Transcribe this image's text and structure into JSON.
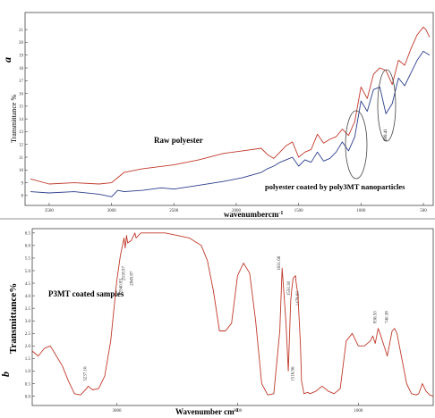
{
  "chart_data": [
    {
      "type": "line",
      "panel": "a",
      "panel_label": "a",
      "ylabel": "Transmittance %",
      "xlabel": "wavenumbercm",
      "xlabel_sup": "-1",
      "xlim": [
        3650,
        450
      ],
      "ylim": [
        7.5,
        21.5
      ],
      "x_ticks": [
        3500,
        3000,
        2500,
        2000,
        1500,
        1000,
        500
      ],
      "y_ticks": [
        8,
        9,
        10,
        11,
        12,
        13,
        14,
        15,
        16,
        17,
        18,
        19,
        20,
        21
      ],
      "annotations": {
        "raw": "Raw polyester",
        "coated": "polyester coated by poly3MT nanoparticles",
        "peak": "699.41"
      },
      "series": [
        {
          "key": "raw",
          "color": "#c0392b",
          "x": [
            3650,
            3500,
            3300,
            3100,
            3000,
            2900,
            2750,
            2500,
            2300,
            2100,
            1950,
            1800,
            1750,
            1700,
            1650,
            1600,
            1550,
            1500,
            1450,
            1400,
            1350,
            1300,
            1250,
            1200,
            1150,
            1100,
            1050,
            1000,
            950,
            900,
            850,
            800,
            750,
            700,
            650,
            600,
            550,
            500,
            480,
            450
          ],
          "y": [
            9.3,
            8.9,
            9.0,
            8.9,
            9.0,
            9.8,
            10.1,
            10.4,
            10.8,
            11.3,
            11.5,
            11.7,
            11.2,
            10.9,
            11.4,
            11.9,
            12.2,
            11.0,
            11.4,
            11.6,
            12.8,
            12.1,
            12.4,
            12.6,
            13.2,
            12.7,
            13.8,
            16.5,
            15.6,
            17.5,
            18.0,
            17.8,
            16.7,
            18.6,
            18.2,
            19.5,
            20.6,
            21.2,
            21.0,
            20.4
          ]
        },
        {
          "key": "coated",
          "color": "#2c3e8c",
          "x": [
            3650,
            3500,
            3300,
            3100,
            3000,
            2950,
            2900,
            2750,
            2600,
            2500,
            2300,
            2100,
            1950,
            1800,
            1750,
            1700,
            1650,
            1600,
            1550,
            1500,
            1450,
            1400,
            1350,
            1300,
            1250,
            1200,
            1150,
            1100,
            1050,
            1000,
            950,
            900,
            850,
            800,
            750,
            700,
            650,
            600,
            550,
            500,
            450
          ],
          "y": [
            8.3,
            8.2,
            8.3,
            8.1,
            7.9,
            8.4,
            8.3,
            8.4,
            8.6,
            8.5,
            8.8,
            9.1,
            9.4,
            9.8,
            10.1,
            10.3,
            10.6,
            10.8,
            11.0,
            10.3,
            10.8,
            10.6,
            11.4,
            10.7,
            10.9,
            11.4,
            12.2,
            11.5,
            12.6,
            15.4,
            14.6,
            16.3,
            16.5,
            14.4,
            15.2,
            17.2,
            16.6,
            17.6,
            18.6,
            19.3,
            19.0
          ]
        }
      ]
    },
    {
      "type": "line",
      "panel": "b",
      "panel_label": "b",
      "title": "P3MT coated samples",
      "ylabel": "Transmittance%",
      "xlabel": "Wavenumber cm",
      "xlabel_sup": "-1",
      "xlim": [
        3700,
        380
      ],
      "ylim": [
        -0.3,
        6.6
      ],
      "x_ticks": [
        3000,
        2000,
        1000
      ],
      "y_ticks": [
        0,
        0.5,
        1,
        1.5,
        2,
        2.5,
        3,
        3.5,
        4,
        4.5,
        5,
        5.5,
        6,
        6.5
      ],
      "peak_labels": [
        "3237.16",
        "2940.83",
        "2918.97",
        "2849.87",
        "1631.66",
        "1550.30",
        "1478.60",
        "1516.96",
        "836.50",
        "740.38"
      ],
      "series": [
        {
          "key": "p3mt",
          "color": "#c0392b",
          "x": [
            3700,
            3650,
            3600,
            3550,
            3500,
            3450,
            3400,
            3350,
            3300,
            3250,
            3237,
            3200,
            3150,
            3100,
            3050,
            3000,
            2970,
            2940,
            2930,
            2919,
            2910,
            2880,
            2850,
            2840,
            2800,
            2700,
            2600,
            2500,
            2400,
            2300,
            2250,
            2200,
            2150,
            2100,
            2050,
            2000,
            1950,
            1900,
            1850,
            1800,
            1750,
            1700,
            1650,
            1631,
            1600,
            1580,
            1560,
            1550,
            1540,
            1520,
            1517,
            1500,
            1480,
            1470,
            1450,
            1420,
            1400,
            1350,
            1300,
            1250,
            1200,
            1150,
            1100,
            1050,
            1000,
            950,
            900,
            880,
            860,
            836,
            820,
            800,
            780,
            760,
            740,
            720,
            700,
            680,
            660,
            640,
            600,
            560,
            520,
            500,
            470,
            440,
            410,
            380
          ],
          "y": [
            1.8,
            1.6,
            1.9,
            2.0,
            1.6,
            1.2,
            0.6,
            0.1,
            0.05,
            0.3,
            0.4,
            0.25,
            0.3,
            0.8,
            2.2,
            4.6,
            5.6,
            6.3,
            5.9,
            6.4,
            6.1,
            6.2,
            6.5,
            6.3,
            6.5,
            6.5,
            6.5,
            6.4,
            6.3,
            6.0,
            5.4,
            4.2,
            2.6,
            2.6,
            2.9,
            4.8,
            5.3,
            4.9,
            3.0,
            0.5,
            0.05,
            0.1,
            2.6,
            5.1,
            3.0,
            1.0,
            3.8,
            4.3,
            4.7,
            4.8,
            4.6,
            4.0,
            2.1,
            0.6,
            0.1,
            0.15,
            0.1,
            0.2,
            0.4,
            0.2,
            0.1,
            0.3,
            2.2,
            2.5,
            2.0,
            2.0,
            2.2,
            2.4,
            2.1,
            2.7,
            2.5,
            2.2,
            1.9,
            1.6,
            2.1,
            2.6,
            2.7,
            2.5,
            2.0,
            1.5,
            0.5,
            0.1,
            0.05,
            0.1,
            0.5,
            0.2,
            0.05,
            0.0
          ]
        }
      ]
    }
  ]
}
